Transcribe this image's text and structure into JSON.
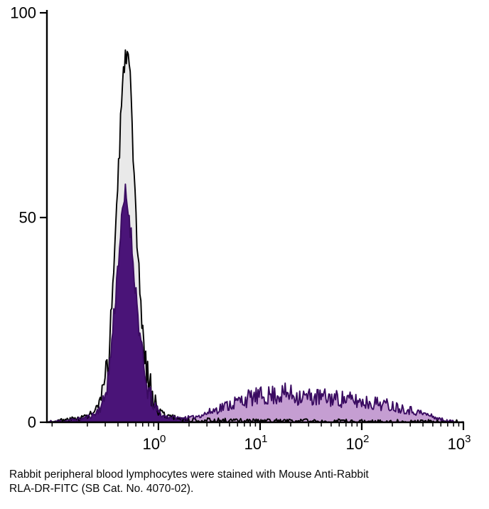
{
  "caption": {
    "line1": "Rabbit peripheral blood lymphocytes were stained with Mouse Anti-Rabbit",
    "line2": "RLA-DR-FITC (SB Cat. No. 4070-02)."
  },
  "chart_data": {
    "type": "area",
    "subtype": "flow-cytometry-histogram-overlay",
    "title": "",
    "xlabel": "",
    "ylabel": "",
    "xscale": "log",
    "xlim": [
      0.08,
      1000
    ],
    "ylim": [
      0,
      100
    ],
    "grid": false,
    "legend": "none",
    "yticks": [
      0,
      50,
      100
    ],
    "ytick_labels": [
      "0",
      "50",
      "100"
    ],
    "xticks": [
      1,
      10,
      100,
      1000
    ],
    "xtick_labels": [
      {
        "base": "10",
        "exp": "0"
      },
      {
        "base": "10",
        "exp": "1"
      },
      {
        "base": "10",
        "exp": "2"
      },
      {
        "base": "10",
        "exp": "3"
      }
    ],
    "series": [
      {
        "id": "control",
        "stroke": "#000000",
        "fill": "#e9e9e9",
        "noise": 4,
        "anchors": [
          [
            0.08,
            0
          ],
          [
            0.13,
            0.6
          ],
          [
            0.18,
            1.2
          ],
          [
            0.24,
            2.5
          ],
          [
            0.29,
            7
          ],
          [
            0.33,
            18
          ],
          [
            0.37,
            42
          ],
          [
            0.42,
            70
          ],
          [
            0.47,
            92
          ],
          [
            0.52,
            86
          ],
          [
            0.57,
            60
          ],
          [
            0.64,
            36
          ],
          [
            0.74,
            15
          ],
          [
            0.9,
            5
          ],
          [
            1.1,
            2
          ],
          [
            1.5,
            1
          ],
          [
            2,
            0.6
          ],
          [
            5,
            0.35
          ],
          [
            20,
            0.25
          ],
          [
            100,
            0.15
          ],
          [
            400,
            0.1
          ],
          [
            700,
            0
          ],
          [
            1000,
            0
          ]
        ]
      },
      {
        "id": "stained",
        "stroke": "#3a0b61",
        "fill_negative": "#4a1478",
        "fill_positive": "#c59ed2",
        "negative_gate_max_x": 2,
        "noise": 3,
        "anchors": [
          [
            0.08,
            0
          ],
          [
            0.13,
            0.4
          ],
          [
            0.18,
            0.9
          ],
          [
            0.24,
            2
          ],
          [
            0.29,
            5
          ],
          [
            0.33,
            13
          ],
          [
            0.37,
            28
          ],
          [
            0.42,
            45
          ],
          [
            0.47,
            56
          ],
          [
            0.52,
            50
          ],
          [
            0.57,
            38
          ],
          [
            0.64,
            24
          ],
          [
            0.74,
            10
          ],
          [
            0.9,
            4
          ],
          [
            1.1,
            1.5
          ],
          [
            1.6,
            1
          ],
          [
            2.2,
            1.2
          ],
          [
            3,
            2.2
          ],
          [
            4,
            3.5
          ],
          [
            6,
            5
          ],
          [
            8,
            6
          ],
          [
            12,
            6.5
          ],
          [
            18,
            7
          ],
          [
            28,
            6.2
          ],
          [
            45,
            6
          ],
          [
            70,
            5.6
          ],
          [
            100,
            5
          ],
          [
            150,
            4.6
          ],
          [
            220,
            3.8
          ],
          [
            320,
            2.8
          ],
          [
            450,
            1.8
          ],
          [
            550,
            1
          ],
          [
            680,
            0.3
          ],
          [
            850,
            0
          ],
          [
            1000,
            0
          ]
        ]
      }
    ]
  }
}
